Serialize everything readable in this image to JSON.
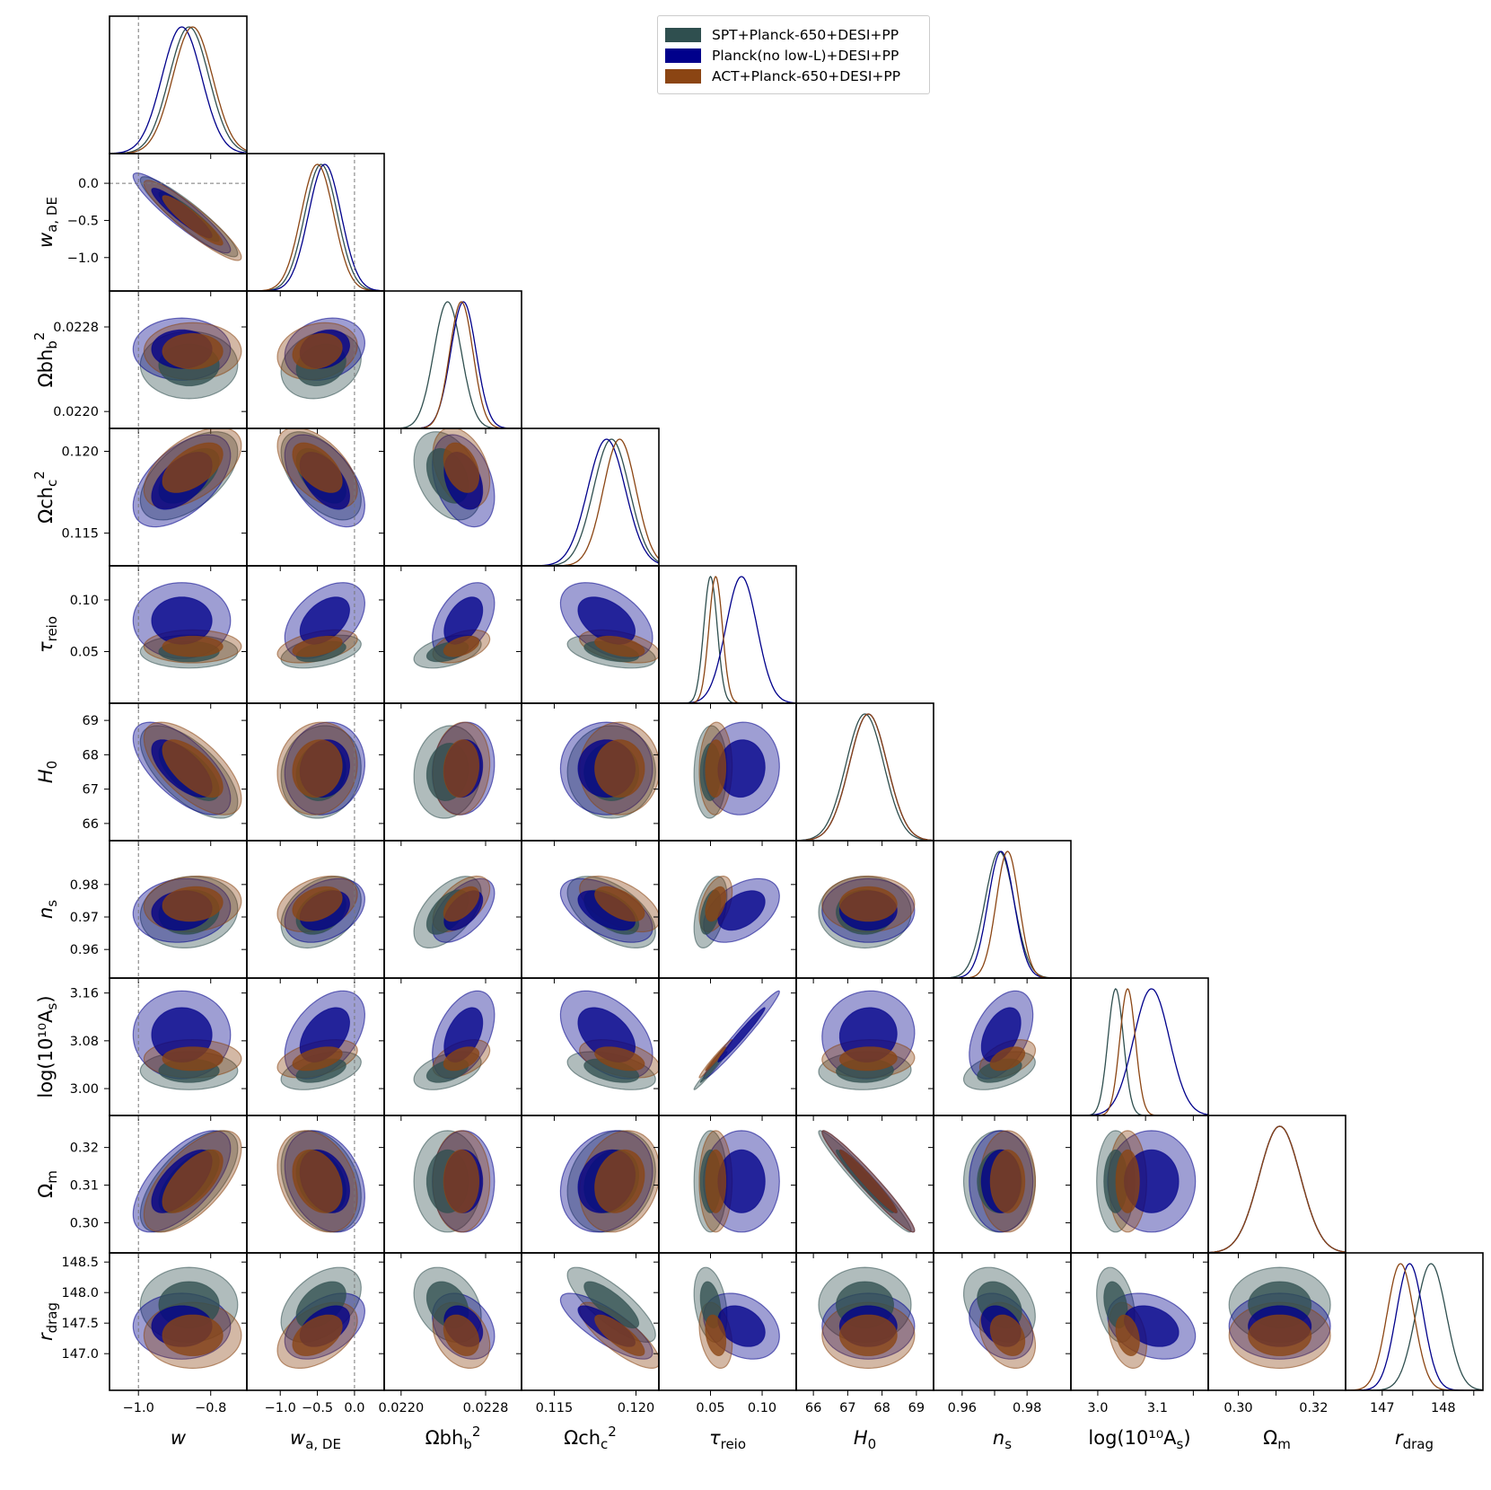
{
  "legend": {
    "placement": "top-right",
    "entries": [
      {
        "label": "SPT+Planck-650+DESI+PP",
        "color": "#2F4F4F"
      },
      {
        "label": "Planck(no low-L)+DESI+PP",
        "color": "#00008B"
      },
      {
        "label": "ACT+Planck-650+DESI+PP",
        "color": "#8B4513"
      }
    ]
  },
  "colors": {
    "spt": "#2F4F4F",
    "planck": "#00008B",
    "act": "#8B4513"
  },
  "chart_data": {
    "type": "triangle-plot",
    "title": "",
    "parameters": [
      {
        "key": "w",
        "label": "w",
        "range": [
          -1.08,
          -0.7
        ],
        "ticks": [
          -1.0,
          -0.8
        ],
        "tick_labels": [
          "−1.0",
          "−0.8"
        ],
        "marker": -1.0,
        "sub": null,
        "sup": null
      },
      {
        "key": "wa",
        "label": "w",
        "sub": "a, DE",
        "sup": null,
        "range": [
          -1.45,
          0.4
        ],
        "ticks": [
          -1.0,
          -0.5,
          0.0
        ],
        "tick_labels": [
          "−1.0",
          "−0.5",
          "0.0"
        ],
        "marker": 0.0
      },
      {
        "key": "obh2",
        "label": "Ωbh",
        "sub": "b",
        "sup": "2",
        "range": [
          0.02184,
          0.02314
        ],
        "ticks": [
          0.022,
          0.0228
        ],
        "tick_labels": [
          "0.0220",
          "0.0228"
        ],
        "marker": null
      },
      {
        "key": "och2",
        "label": "Ωch",
        "sub": "c",
        "sup": "2",
        "range": [
          0.113,
          0.1214
        ],
        "ticks": [
          0.115,
          0.12
        ],
        "tick_labels": [
          "0.115",
          "0.120"
        ],
        "marker": null
      },
      {
        "key": "tau",
        "label": "τ",
        "sub": "reio",
        "sup": null,
        "range": [
          0.0,
          0.133
        ],
        "ticks": [
          0.05,
          0.1
        ],
        "tick_labels": [
          "0.05",
          "0.10"
        ],
        "marker": null
      },
      {
        "key": "H0",
        "label": "H",
        "sub": "0",
        "sup": null,
        "range": [
          65.5,
          69.5
        ],
        "ticks": [
          66,
          67,
          68,
          69
        ],
        "tick_labels": [
          "66",
          "67",
          "68",
          "69"
        ],
        "marker": null
      },
      {
        "key": "ns",
        "label": "n",
        "sub": "s",
        "sup": null,
        "range": [
          0.9512,
          0.9935
        ],
        "ticks": [
          0.96,
          0.97,
          0.98
        ],
        "tick_labels": [
          "0.96",
          "0.97",
          "0.98"
        ],
        "marker": null
      },
      {
        "key": "lnAs",
        "label": "log(10¹⁰A",
        "sub": "s",
        "sup": null,
        "suffix": ")",
        "range": [
          2.955,
          3.185
        ],
        "ticks": [
          3.0,
          3.08,
          3.16
        ],
        "tick_labels": [
          "3.00",
          "3.08",
          "3.16"
        ],
        "marker": null
      },
      {
        "key": "om",
        "label": "Ω",
        "sub": "m",
        "sup": null,
        "range": [
          0.292,
          0.3285
        ],
        "ticks": [
          0.3,
          0.31,
          0.32
        ],
        "tick_labels": [
          "0.30",
          "0.31",
          "0.32"
        ],
        "marker": null
      },
      {
        "key": "rdrag",
        "label": "r",
        "sub": "drag",
        "sup": null,
        "range": [
          146.4,
          148.65
        ],
        "ticks": [
          147.0,
          147.5,
          148.0,
          148.5
        ],
        "tick_labels": [
          "147.0",
          "147.5",
          "148.0",
          "148.5"
        ],
        "marker": null
      }
    ],
    "bottom_ticks": {
      "w": {
        "ticks": [
          -1.0,
          -0.8
        ],
        "labels": [
          "−1.0",
          "−0.8"
        ]
      },
      "wa": {
        "ticks": [
          -1.0,
          -0.5,
          0.0
        ],
        "labels": [
          "−1.0",
          "−0.5",
          "0.0"
        ]
      },
      "obh2": {
        "ticks": [
          0.022,
          0.0228
        ],
        "labels": [
          "0.0220",
          "0.0228"
        ]
      },
      "och2": {
        "ticks": [
          0.115,
          0.12
        ],
        "labels": [
          "0.115",
          "0.120"
        ]
      },
      "tau": {
        "ticks": [
          0.05,
          0.1
        ],
        "labels": [
          "0.05",
          "0.10"
        ]
      },
      "H0": {
        "ticks": [
          66,
          67,
          68,
          69
        ],
        "labels": [
          "66",
          "67",
          "68",
          "69"
        ]
      },
      "ns": {
        "ticks": [
          0.96,
          0.98
        ],
        "labels": [
          "0.96",
          "0.98"
        ]
      },
      "lnAs": {
        "ticks": [
          3.0,
          3.1
        ],
        "labels": [
          "3.0",
          "3.1"
        ]
      },
      "om": {
        "ticks": [
          0.3,
          0.32
        ],
        "labels": [
          "0.30",
          "0.32"
        ]
      },
      "rdrag": {
        "ticks": [
          147,
          148
        ],
        "labels": [
          "147",
          "148"
        ]
      }
    },
    "series": [
      {
        "name": "SPT+Planck-650+DESI+PP",
        "color": "#2F4F4F",
        "means": {
          "w": -0.86,
          "wa": -0.45,
          "obh2": 0.02244,
          "och2": 0.1185,
          "tau": 0.05,
          "H0": 67.5,
          "ns": 0.9715,
          "lnAs": 3.03,
          "om": 0.311,
          "rdrag": 147.8
        },
        "sigmas": {
          "w": 0.055,
          "wa": 0.22,
          "obh2": 0.00013,
          "och2": 0.0011,
          "tau": 0.0065,
          "H0": 0.55,
          "ns": 0.0045,
          "lnAs": 0.013,
          "om": 0.0055,
          "rdrag": 0.25
        }
      },
      {
        "name": "Planck(no low-L)+DESI+PP",
        "color": "#00008B",
        "means": {
          "w": -0.88,
          "wa": -0.4,
          "obh2": 0.02259,
          "och2": 0.1182,
          "tau": 0.08,
          "H0": 67.6,
          "ns": 0.972,
          "lnAs": 3.09,
          "om": 0.311,
          "rdrag": 147.45
        },
        "sigmas": {
          "w": 0.055,
          "wa": 0.22,
          "obh2": 0.00012,
          "och2": 0.00115,
          "tau": 0.015,
          "H0": 0.55,
          "ns": 0.004,
          "lnAs": 0.03,
          "om": 0.0055,
          "rdrag": 0.22
        }
      },
      {
        "name": "ACT+Planck-650+DESI+PP",
        "color": "#8B4513",
        "means": {
          "w": -0.85,
          "wa": -0.5,
          "obh2": 0.02257,
          "och2": 0.119,
          "tau": 0.055,
          "H0": 67.6,
          "ns": 0.974,
          "lnAs": 3.05,
          "om": 0.311,
          "rdrag": 147.3
        },
        "sigmas": {
          "w": 0.055,
          "wa": 0.22,
          "obh2": 0.00011,
          "och2": 0.001,
          "tau": 0.0065,
          "H0": 0.55,
          "ns": 0.0035,
          "lnAs": 0.013,
          "om": 0.0055,
          "rdrag": 0.22
        }
      }
    ],
    "correlations": {
      "wa|w": -0.92,
      "obh2|w": 0.0,
      "obh2|wa": 0.2,
      "och2|w": 0.55,
      "och2|wa": -0.55,
      "och2|obh2": -0.35,
      "tau|w": 0.0,
      "tau|wa": 0.45,
      "tau|obh2": 0.45,
      "tau|och2": -0.45,
      "H0|w": -0.65,
      "H0|wa": 0.1,
      "H0|obh2": 0.1,
      "H0|och2": 0.0,
      "H0|tau": 0.05,
      "ns|w": 0.1,
      "ns|wa": 0.35,
      "ns|obh2": 0.55,
      "ns|och2": -0.55,
      "ns|tau": 0.45,
      "ns|H0": 0.0,
      "lnAs|w": 0.0,
      "lnAs|wa": 0.45,
      "lnAs|obh2": 0.45,
      "lnAs|och2": -0.45,
      "lnAs|tau": 0.98,
      "lnAs|H0": 0.05,
      "lnAs|ns": 0.45,
      "om|w": 0.65,
      "om|wa": -0.3,
      "om|obh2": 0.0,
      "om|och2": 0.2,
      "om|tau": 0.0,
      "om|H0": -0.97,
      "om|ns": 0.0,
      "om|lnAs": 0.0,
      "rdrag|w": 0.0,
      "rdrag|wa": 0.45,
      "rdrag|obh2": -0.3,
      "rdrag|och2": -0.8,
      "rdrag|tau": -0.3,
      "rdrag|H0": 0.0,
      "rdrag|ns": -0.3,
      "rdrag|lnAs": -0.3,
      "rdrag|om": 0.0
    },
    "contour_levels": [
      "68%",
      "95%"
    ],
    "grid": false,
    "legend_placement": "top-right"
  }
}
